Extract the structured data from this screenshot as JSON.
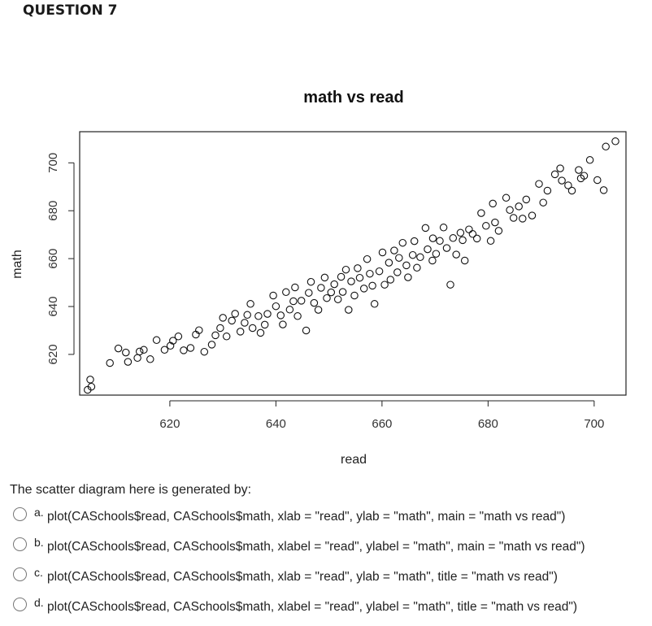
{
  "question": {
    "heading": "QUESTION 7",
    "prompt": "The scatter diagram here is generated by:",
    "options": [
      {
        "letter": "a.",
        "text": "plot(CASchools$read, CASchools$math, xlab = \"read\", ylab = \"math\", main = \"math vs read\")"
      },
      {
        "letter": "b.",
        "text": "plot(CASchools$read, CASchools$math, xlabel = \"read\", ylabel = \"math\", main = \"math vs read\")"
      },
      {
        "letter": "c.",
        "text": "plot(CASchools$read, CASchools$math, xlab = \"read\", ylab = \"math\", title = \"math vs read\")"
      },
      {
        "letter": "d.",
        "text": "plot(CASchools$read, CASchools$math, xlabel = \"read\", ylabel = \"math\", title = \"math vs read\")"
      }
    ]
  },
  "chart_data": {
    "type": "scatter",
    "title": "math vs read",
    "xlabel": "read",
    "ylabel": "math",
    "xlim": [
      603,
      706
    ],
    "ylim": [
      603,
      713
    ],
    "xticks": [
      620,
      640,
      660,
      680,
      700
    ],
    "yticks": [
      620,
      640,
      660,
      680,
      700
    ],
    "grid": false,
    "legend": "none",
    "marker": "open-circle",
    "points": [
      [
        604.5,
        605.2
      ],
      [
        605.2,
        606.5
      ],
      [
        605.0,
        609.5
      ],
      [
        608.7,
        616.4
      ],
      [
        610.3,
        622.5
      ],
      [
        611.7,
        620.8
      ],
      [
        612.1,
        616.9
      ],
      [
        613.9,
        618.5
      ],
      [
        614.3,
        621.2
      ],
      [
        615.1,
        621.9
      ],
      [
        616.3,
        618.0
      ],
      [
        617.5,
        626.0
      ],
      [
        619.0,
        621.9
      ],
      [
        620.1,
        623.6
      ],
      [
        620.6,
        625.7
      ],
      [
        621.6,
        627.5
      ],
      [
        622.6,
        621.7
      ],
      [
        623.9,
        622.7
      ],
      [
        624.9,
        628.3
      ],
      [
        625.5,
        630.1
      ],
      [
        626.5,
        621.1
      ],
      [
        627.9,
        624.1
      ],
      [
        628.6,
        628.0
      ],
      [
        629.5,
        631.0
      ],
      [
        630.0,
        635.3
      ],
      [
        630.7,
        627.5
      ],
      [
        631.7,
        634.1
      ],
      [
        632.3,
        637.0
      ],
      [
        633.3,
        629.5
      ],
      [
        634.1,
        633.2
      ],
      [
        634.6,
        636.5
      ],
      [
        635.2,
        641.1
      ],
      [
        635.6,
        631.0
      ],
      [
        636.7,
        636.0
      ],
      [
        637.1,
        629.0
      ],
      [
        637.9,
        632.4
      ],
      [
        638.4,
        636.9
      ],
      [
        639.5,
        644.6
      ],
      [
        640.0,
        640.1
      ],
      [
        640.9,
        636.3
      ],
      [
        641.3,
        632.5
      ],
      [
        641.9,
        646.0
      ],
      [
        642.6,
        638.7
      ],
      [
        643.3,
        642.2
      ],
      [
        643.6,
        648.0
      ],
      [
        644.1,
        636.0
      ],
      [
        644.8,
        642.4
      ],
      [
        645.7,
        630.0
      ],
      [
        646.2,
        645.7
      ],
      [
        646.6,
        650.3
      ],
      [
        647.2,
        641.5
      ],
      [
        648.0,
        638.6
      ],
      [
        648.5,
        647.8
      ],
      [
        649.2,
        652.1
      ],
      [
        649.6,
        643.5
      ],
      [
        650.4,
        645.9
      ],
      [
        651.0,
        649.3
      ],
      [
        651.7,
        643.0
      ],
      [
        652.3,
        652.4
      ],
      [
        652.6,
        646.1
      ],
      [
        653.2,
        655.4
      ],
      [
        653.7,
        638.6
      ],
      [
        654.2,
        650.5
      ],
      [
        654.8,
        644.6
      ],
      [
        655.4,
        656.0
      ],
      [
        655.8,
        652.0
      ],
      [
        656.6,
        647.5
      ],
      [
        657.2,
        659.8
      ],
      [
        657.7,
        653.7
      ],
      [
        658.2,
        648.7
      ],
      [
        658.6,
        641.1
      ],
      [
        659.5,
        654.7
      ],
      [
        660.1,
        662.6
      ],
      [
        660.5,
        649.1
      ],
      [
        661.3,
        658.3
      ],
      [
        661.6,
        651.2
      ],
      [
        662.3,
        663.4
      ],
      [
        662.9,
        654.3
      ],
      [
        663.2,
        660.3
      ],
      [
        663.9,
        666.6
      ],
      [
        664.6,
        657.2
      ],
      [
        664.9,
        652.2
      ],
      [
        665.8,
        661.5
      ],
      [
        666.1,
        667.3
      ],
      [
        666.6,
        656.2
      ],
      [
        667.2,
        660.6
      ],
      [
        668.2,
        672.8
      ],
      [
        668.6,
        663.9
      ],
      [
        669.5,
        659.2
      ],
      [
        669.6,
        668.5
      ],
      [
        670.2,
        662.0
      ],
      [
        670.9,
        667.4
      ],
      [
        671.6,
        673.0
      ],
      [
        672.2,
        664.4
      ],
      [
        672.9,
        649.1
      ],
      [
        673.4,
        668.6
      ],
      [
        674.0,
        661.7
      ],
      [
        674.8,
        670.8
      ],
      [
        675.2,
        667.7
      ],
      [
        675.6,
        659.2
      ],
      [
        676.4,
        672.2
      ],
      [
        677.1,
        670.3
      ],
      [
        677.9,
        668.4
      ],
      [
        678.7,
        679.0
      ],
      [
        679.6,
        673.7
      ],
      [
        680.5,
        667.4
      ],
      [
        680.9,
        683.0
      ],
      [
        681.3,
        675.1
      ],
      [
        682.0,
        671.6
      ],
      [
        683.4,
        685.4
      ],
      [
        684.1,
        680.3
      ],
      [
        684.8,
        677.0
      ],
      [
        685.8,
        681.8
      ],
      [
        686.5,
        676.7
      ],
      [
        687.2,
        684.7
      ],
      [
        688.3,
        678.0
      ],
      [
        689.6,
        691.2
      ],
      [
        690.4,
        683.4
      ],
      [
        691.2,
        688.4
      ],
      [
        692.6,
        695.2
      ],
      [
        693.6,
        697.7
      ],
      [
        695.1,
        690.6
      ],
      [
        695.8,
        688.4
      ],
      [
        697.1,
        697.0
      ],
      [
        698.1,
        694.6
      ],
      [
        699.2,
        701.2
      ],
      [
        700.6,
        692.8
      ],
      [
        702.2,
        706.8
      ],
      [
        704.0,
        709.0
      ],
      [
        701.8,
        688.6
      ],
      [
        697.5,
        693.5
      ],
      [
        693.9,
        692.6
      ]
    ]
  }
}
